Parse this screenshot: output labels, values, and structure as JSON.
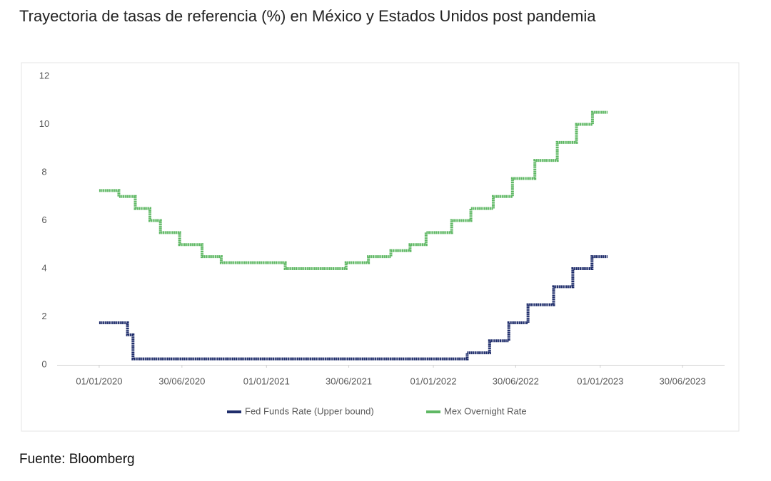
{
  "chart_data": {
    "type": "step-line",
    "title": "Trayectoria de tasas de referencia (%) en México y Estados Unidos post pandemia",
    "source": "Fuente: Bloomberg",
    "xlim": [
      "2019-10-01",
      "2023-09-30"
    ],
    "xticks": [
      {
        "value": "2020-01-01",
        "label": "01/01/2020"
      },
      {
        "value": "2020-06-30",
        "label": "30/06/2020"
      },
      {
        "value": "2021-01-01",
        "label": "01/01/2021"
      },
      {
        "value": "2021-06-30",
        "label": "30/06/2021"
      },
      {
        "value": "2022-01-01",
        "label": "01/01/2022"
      },
      {
        "value": "2022-06-30",
        "label": "30/06/2022"
      },
      {
        "value": "2023-01-01",
        "label": "01/01/2023"
      },
      {
        "value": "2023-06-30",
        "label": "30/06/2023"
      }
    ],
    "ylim": [
      0,
      12
    ],
    "yticks": [
      0,
      2,
      4,
      6,
      8,
      10,
      12
    ],
    "grid": false,
    "legend": "bottom",
    "series": [
      {
        "name": "Fed Funds Rate (Upper bound)",
        "color": "#1f2d6b",
        "x": [
          "2020-01-01",
          "2020-03-03",
          "2020-03-15",
          "2022-03-16",
          "2022-05-04",
          "2022-06-15",
          "2022-07-27",
          "2022-09-21",
          "2022-11-02",
          "2022-12-14",
          "2023-01-17"
        ],
        "values": [
          1.75,
          1.25,
          0.25,
          0.5,
          1.0,
          1.75,
          2.5,
          3.25,
          4.0,
          4.5,
          4.5
        ]
      },
      {
        "name": "Mex Overnight Rate",
        "color": "#5fb864",
        "x": [
          "2020-01-01",
          "2020-02-13",
          "2020-03-20",
          "2020-04-21",
          "2020-05-14",
          "2020-06-25",
          "2020-08-13",
          "2020-09-24",
          "2021-02-11",
          "2021-06-24",
          "2021-08-12",
          "2021-09-30",
          "2021-11-11",
          "2021-12-16",
          "2022-02-10",
          "2022-03-24",
          "2022-05-12",
          "2022-06-23",
          "2022-08-11",
          "2022-09-29",
          "2022-11-10",
          "2022-12-15",
          "2023-01-17"
        ],
        "values": [
          7.25,
          7.0,
          6.5,
          6.0,
          5.5,
          5.0,
          4.5,
          4.25,
          4.0,
          4.25,
          4.5,
          4.75,
          5.0,
          5.5,
          6.0,
          6.5,
          7.0,
          7.75,
          8.5,
          9.25,
          10.0,
          10.5,
          10.5
        ]
      }
    ]
  }
}
